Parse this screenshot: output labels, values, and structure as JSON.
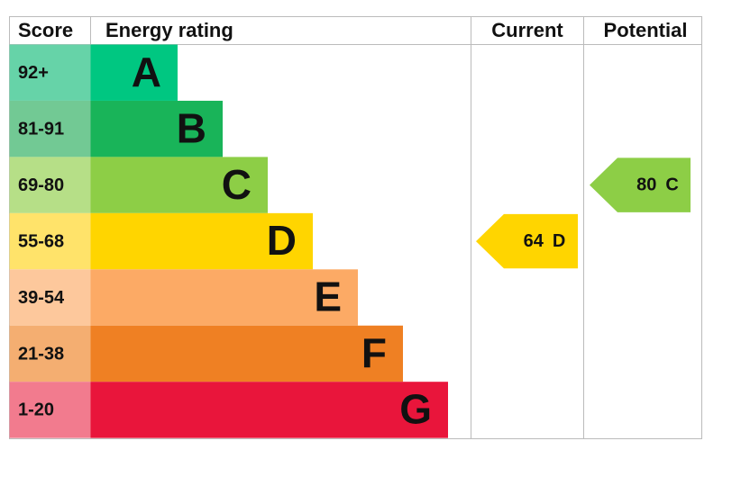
{
  "header": {
    "score": "Score",
    "energy_rating": "Energy rating",
    "current": "Current",
    "potential": "Potential"
  },
  "bands": [
    {
      "score": "92+",
      "letter": "A"
    },
    {
      "score": "81-91",
      "letter": "B"
    },
    {
      "score": "69-80",
      "letter": "C"
    },
    {
      "score": "55-68",
      "letter": "D"
    },
    {
      "score": "39-54",
      "letter": "E"
    },
    {
      "score": "21-38",
      "letter": "F"
    },
    {
      "score": "1-20",
      "letter": "G"
    }
  ],
  "current": {
    "score": 64,
    "rating": "D"
  },
  "potential": {
    "score": 80,
    "rating": "C"
  }
}
